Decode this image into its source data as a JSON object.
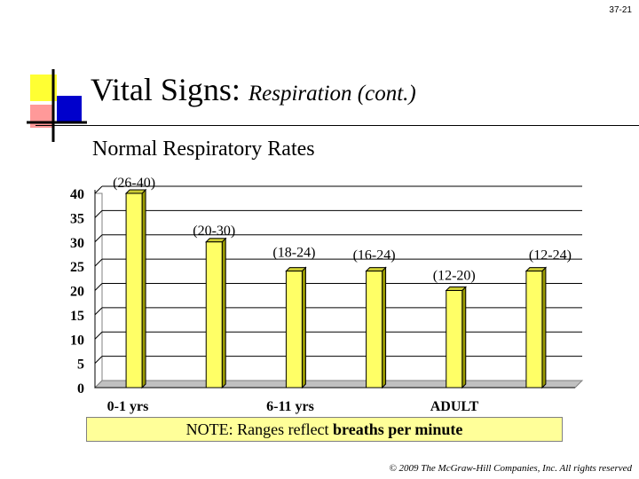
{
  "slide": {
    "number": "37-21",
    "title_main": "Vital Signs:",
    "title_italic": "Respiration (cont.)",
    "subtitle": "Normal Respiratory Rates",
    "note_prefix": "NOTE: Ranges reflect ",
    "note_bold": "breaths per minute",
    "copyright": "© 2009 The McGraw-Hill Companies, Inc. All rights reserved"
  },
  "chart_data": {
    "type": "bar",
    "values": [
      40,
      30,
      24,
      24,
      20,
      24
    ],
    "bar_labels": [
      "(26-40)",
      "(20-30)",
      "(18-24)",
      "(16-24)",
      "(12-20)",
      "(12-24)"
    ],
    "xtick_labels": [
      "0-1 yrs",
      "6-11 yrs",
      "ADULT"
    ],
    "yticks": [
      0,
      5,
      10,
      15,
      20,
      25,
      30,
      35,
      40
    ],
    "ylim": [
      0,
      40
    ],
    "grid": true,
    "bar_color": "#ffff66"
  }
}
